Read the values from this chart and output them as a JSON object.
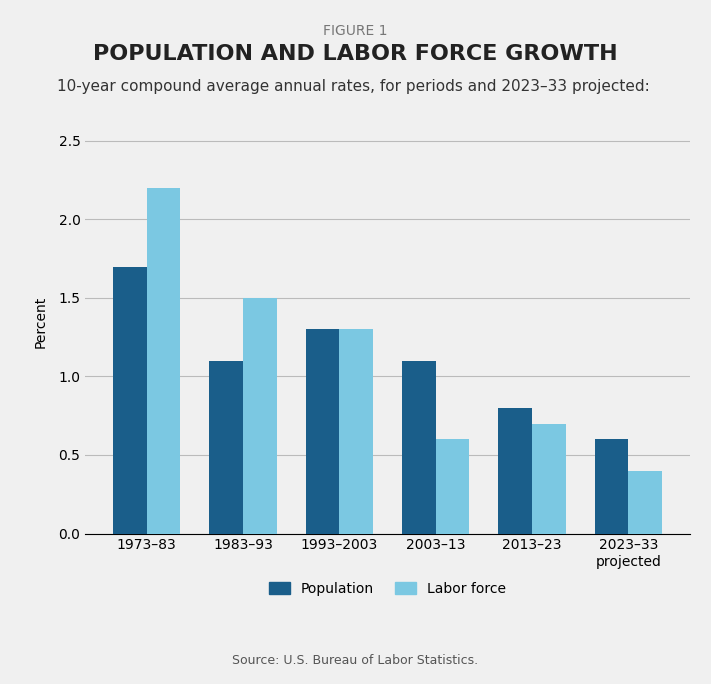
{
  "figure_label": "FIGURE 1",
  "title": "POPULATION AND LABOR FORCE GROWTH",
  "subtitle": "10-year compound average annual rates, for periods and 2023–33 projected:",
  "ylabel": "Percent",
  "source": "Source: U.S. Bureau of Labor Statistics.",
  "categories": [
    "1973–83",
    "1983–93",
    "1993–2003",
    "2003–13",
    "2013–23",
    "2023–33\nprojected"
  ],
  "population": [
    1.7,
    1.1,
    1.3,
    1.1,
    0.8,
    0.6
  ],
  "labor_force": [
    2.2,
    1.5,
    1.3,
    0.6,
    0.7,
    0.4
  ],
  "pop_color": "#1a5e8a",
  "lf_color": "#7bc8e2",
  "ylim": [
    0,
    2.7
  ],
  "yticks": [
    0.0,
    0.5,
    1.0,
    1.5,
    2.0,
    2.5
  ],
  "bar_width": 0.35,
  "background_color": "#f0f0f0",
  "figure_label_fontsize": 10,
  "title_fontsize": 16,
  "subtitle_fontsize": 11,
  "axis_label_fontsize": 10,
  "tick_fontsize": 10,
  "source_fontsize": 9,
  "legend_fontsize": 10
}
